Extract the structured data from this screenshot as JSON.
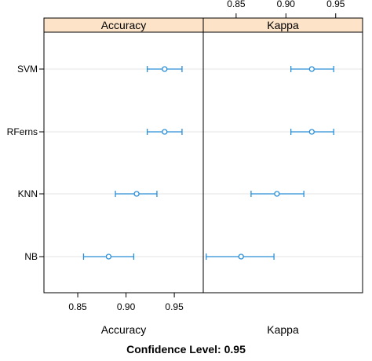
{
  "chart_data": {
    "type": "dotplot",
    "categories": [
      "SVM",
      "RFerns",
      "KNN",
      "NB"
    ],
    "panels": [
      {
        "strip_label": "Accuracy",
        "xlabel": "Accuracy",
        "xlim": [
          0.815,
          0.98
        ],
        "ticks": [
          0.85,
          0.9,
          0.95
        ],
        "tick_labels": [
          "0.85",
          "0.90",
          "0.95"
        ],
        "ticks_side": "bottom",
        "points": [
          {
            "category": "SVM",
            "estimate": 0.94,
            "lower": 0.922,
            "upper": 0.958
          },
          {
            "category": "RFerns",
            "estimate": 0.94,
            "lower": 0.922,
            "upper": 0.958
          },
          {
            "category": "KNN",
            "estimate": 0.911,
            "lower": 0.889,
            "upper": 0.932
          },
          {
            "category": "NB",
            "estimate": 0.882,
            "lower": 0.856,
            "upper": 0.908
          }
        ]
      },
      {
        "strip_label": "Kappa",
        "xlabel": "Kappa",
        "xlim": [
          0.817,
          0.977
        ],
        "ticks": [
          0.85,
          0.9,
          0.95
        ],
        "tick_labels": [
          "0.85",
          "0.90",
          "0.95"
        ],
        "ticks_side": "top",
        "points": [
          {
            "category": "SVM",
            "estimate": 0.926,
            "lower": 0.905,
            "upper": 0.948
          },
          {
            "category": "RFerns",
            "estimate": 0.926,
            "lower": 0.905,
            "upper": 0.948
          },
          {
            "category": "KNN",
            "estimate": 0.891,
            "lower": 0.865,
            "upper": 0.918
          },
          {
            "category": "NB",
            "estimate": 0.855,
            "lower": 0.82,
            "upper": 0.888
          }
        ]
      }
    ],
    "footer": "Confidence Level: 0.95",
    "strip_color": "#fde3c8",
    "point_color": "#2b8fd8",
    "grid_color": "#e6e6e6",
    "grid": true
  }
}
